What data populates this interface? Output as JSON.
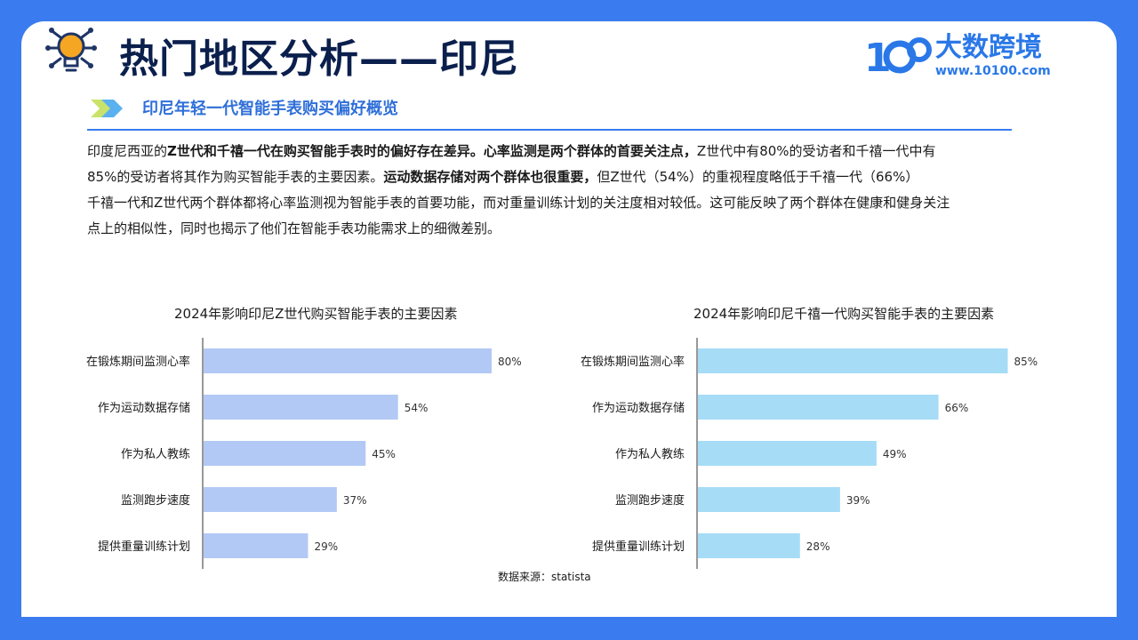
{
  "header": {
    "title": "热门地区分析——印尼",
    "subtitle": "印尼年轻一代智能手表购买偏好概览"
  },
  "logo": {
    "brand_cn": "大数跨境",
    "url": "www.10100.com",
    "mark": "10100"
  },
  "paragraph": {
    "l1_a": "印度尼西亚的",
    "l1_b": "Z世代和千禧一代在购买智能手表时的偏好存在差异。",
    "l1_c": "心率监测是两个群体的首要关注点，",
    "l1_d": "Z世代中有80%的受访者和千禧一代中有",
    "l2_a": "85%的受访者将其作为购买智能手表的主要因素。",
    "l2_b": "运动数据存储对两个群体也很重要，",
    "l2_c": "但Z世代（54%）的重视程度略低于千禧一代（66%）",
    "l3": "千禧一代和Z世代两个群体都将心率监测视为智能手表的首要功能，而对重量训练计划的关注度相对较低。这可能反映了两个群体在健康和健身关注",
    "l4": "点上的相似性，同时也揭示了他们在智能手表功能需求上的细微差别。"
  },
  "colors": {
    "accent": "#3a7bef",
    "title": "#0b1f4d",
    "bar_left": "#b3c9f5",
    "bar_right": "#a6dcf6"
  },
  "icons": {
    "title_icon": "lightbulb-circuit-icon",
    "subtitle_icon": "double-arrow-icon"
  },
  "source": "数据来源：statista",
  "chart_data": [
    {
      "type": "bar",
      "orientation": "horizontal",
      "title": "2024年影响印尼Z世代购买智能手表的主要因素",
      "categories": [
        "在锻炼期间监测心率",
        "作为运动数据存储",
        "作为私人教练",
        "监测跑步速度",
        "提供重量训练计划"
      ],
      "values": [
        80,
        54,
        45,
        37,
        29
      ],
      "labels": [
        "80%",
        "54%",
        "45%",
        "37%",
        "29%"
      ],
      "xlim": [
        0,
        100
      ],
      "grid": false
    },
    {
      "type": "bar",
      "orientation": "horizontal",
      "title": "2024年影响印尼千禧一代购买智能手表的主要因素",
      "categories": [
        "在锻炼期间监测心率",
        "作为运动数据存储",
        "作为私人教练",
        "监测跑步速度",
        "提供重量训练计划"
      ],
      "values": [
        85,
        66,
        49,
        39,
        28
      ],
      "labels": [
        "85%",
        "66%",
        "49%",
        "39%",
        "28%"
      ],
      "xlim": [
        0,
        100
      ],
      "grid": false
    }
  ]
}
